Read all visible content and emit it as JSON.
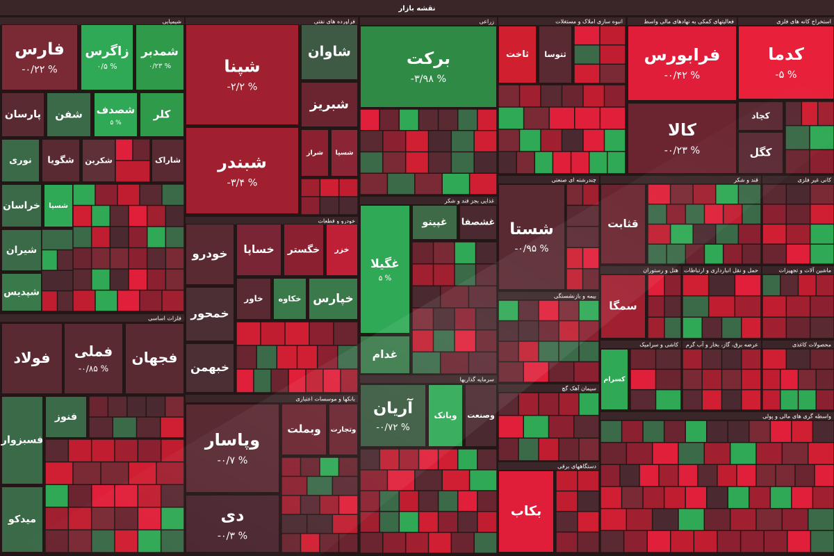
{
  "header": {
    "title": "نقشه بازار"
  },
  "sectors": [
    {
      "name": "شیمیایی",
      "tiles": [
        {
          "symbol": "فارس",
          "change": "-۰/۲۲ %"
        },
        {
          "symbol": "زاگرس",
          "change": "۰/۵ %"
        },
        {
          "symbol": "شمدبر",
          "change": "۰/۲۳ %"
        },
        {
          "symbol": "پارسان"
        },
        {
          "symbol": "شفن"
        },
        {
          "symbol": "شصدف",
          "change": "۵ %"
        },
        {
          "symbol": "کلر"
        },
        {
          "symbol": "نوری"
        },
        {
          "symbol": "شگویا"
        },
        {
          "symbol": "شکربن"
        },
        {
          "symbol": "شاراک"
        },
        {
          "symbol": "خراسان"
        },
        {
          "symbol": "شسپا"
        },
        {
          "symbol": "شیران"
        },
        {
          "symbol": "شپدیس"
        }
      ]
    },
    {
      "name": "فلزات اساسی",
      "tiles": [
        {
          "symbol": "فولاد"
        },
        {
          "symbol": "فملی",
          "change": "-۰/۸۵ %"
        },
        {
          "symbol": "فجهان"
        },
        {
          "symbol": "فسبزوار"
        },
        {
          "symbol": "فنوز"
        },
        {
          "symbol": "میدکو"
        }
      ]
    },
    {
      "name": "فراورده های نفتی",
      "tiles": [
        {
          "symbol": "شپنا",
          "change": "-۲/۲ %"
        },
        {
          "symbol": "شبندر",
          "change": "-۳/۴ %"
        },
        {
          "symbol": "شاوان"
        },
        {
          "symbol": "شبریز"
        },
        {
          "symbol": "شراز"
        },
        {
          "symbol": "شسپا"
        }
      ]
    },
    {
      "name": "خودرو و قطعات",
      "tiles": [
        {
          "symbol": "خودرو"
        },
        {
          "symbol": "خساپا"
        },
        {
          "symbol": "خگستر"
        },
        {
          "symbol": "خزر"
        },
        {
          "symbol": "خمحور"
        },
        {
          "symbol": "خاور"
        },
        {
          "symbol": "خکاوه"
        },
        {
          "symbol": "خپارس"
        },
        {
          "symbol": "خبهمن"
        }
      ]
    },
    {
      "name": "بانکها و موسسات اعتباری",
      "tiles": [
        {
          "symbol": "وپاسار",
          "change": "-۰/۷ %"
        },
        {
          "symbol": "وبملت"
        },
        {
          "symbol": "وتجارت"
        },
        {
          "symbol": "دی",
          "change": "-۰/۳ %"
        }
      ]
    },
    {
      "name": "زراعی",
      "tiles": [
        {
          "symbol": "برکت",
          "change": "-۳/۹۸ %"
        }
      ]
    },
    {
      "name": "غذایی بجز قند و شکر",
      "tiles": [
        {
          "symbol": "غگیلا",
          "change": "۵ %"
        },
        {
          "symbol": "غپینو"
        },
        {
          "symbol": "غشصفا"
        },
        {
          "symbol": "غدام"
        }
      ]
    },
    {
      "name": "سرمایه گذاریها",
      "tiles": [
        {
          "symbol": "آریان",
          "change": "-۰/۷۲ %"
        },
        {
          "symbol": "وبانک"
        },
        {
          "symbol": "وصنعت"
        }
      ]
    },
    {
      "name": "انبوه سازی املاک و مستغلات",
      "tiles": [
        {
          "symbol": "ثاخت"
        },
        {
          "symbol": "ثتوسا"
        }
      ]
    },
    {
      "name": "فعالیتهای کمکی به نهادهای مالی واسط",
      "tiles": [
        {
          "symbol": "فرابورس",
          "change": "-۰/۴۲ %"
        },
        {
          "symbol": "کالا",
          "change": "-۰/۲۳ %"
        }
      ]
    },
    {
      "name": "استخراج کانه های فلزی",
      "tiles": [
        {
          "symbol": "کدما",
          "change": "-۵ %"
        },
        {
          "symbol": "کچاد"
        },
        {
          "symbol": "کگل"
        }
      ]
    },
    {
      "name": "چندرشته ای صنعتی",
      "tiles": [
        {
          "symbol": "شستا",
          "change": "-۰/۹۵ %"
        }
      ]
    },
    {
      "name": "قند و شکر",
      "tiles": [
        {
          "symbol": "قثابت"
        }
      ]
    },
    {
      "name": "کانی غیر فلزی"
    },
    {
      "name": "بیمه و بازنشستگی"
    },
    {
      "name": "هتل و رستوران",
      "tiles": [
        {
          "symbol": "سمگا"
        }
      ]
    },
    {
      "name": "حمل و نقل انبارداری و ارتباطات"
    },
    {
      "name": "ماشین آلات و تجهیزات"
    },
    {
      "name": "کاشی و سرامیک",
      "tiles": [
        {
          "symbol": "کسرام"
        }
      ]
    },
    {
      "name": "عرضه برق، گاز، بخار و آب گرم"
    },
    {
      "name": "سیمان آهک گچ"
    },
    {
      "name": "دستگاههای برقی",
      "tiles": [
        {
          "symbol": "بکاب"
        }
      ]
    },
    {
      "name": "محصولات کاغذی"
    },
    {
      "name": "واسطه گری های مالی و پولی"
    }
  ]
}
